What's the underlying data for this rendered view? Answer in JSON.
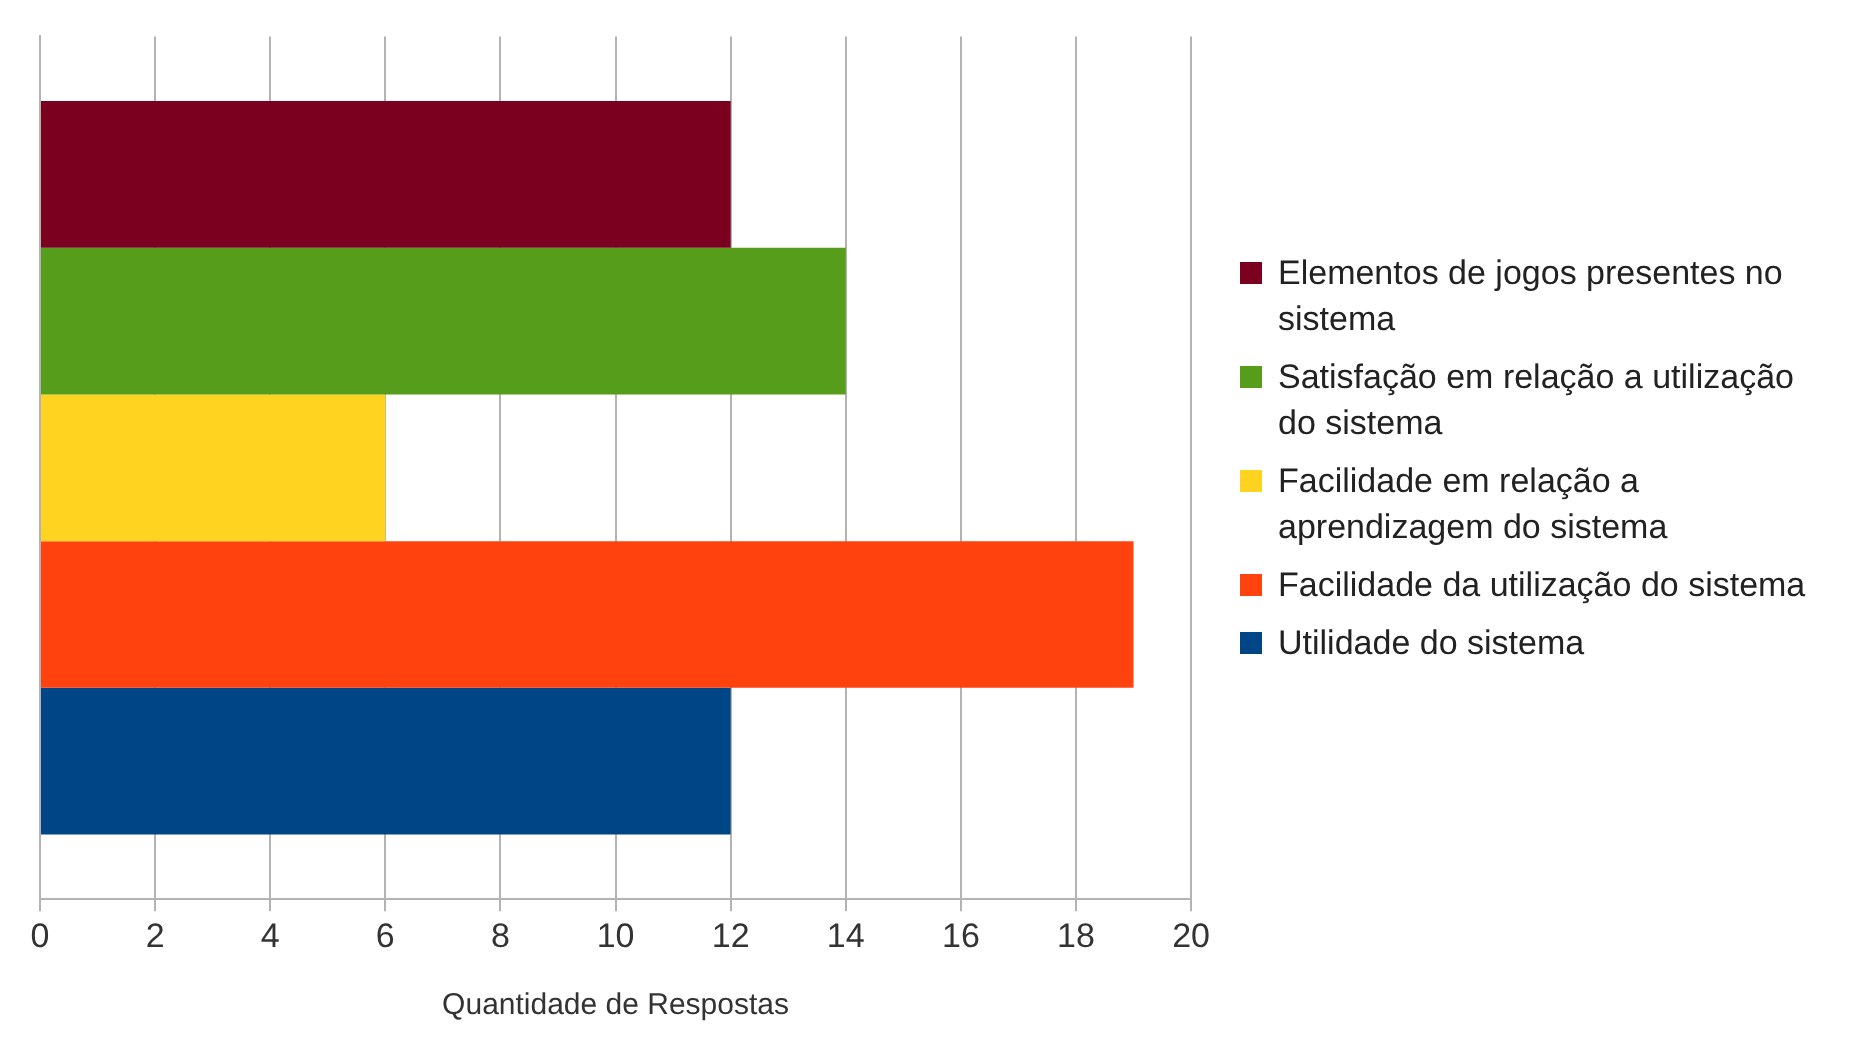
{
  "chart_data": {
    "type": "bar",
    "orientation": "horizontal",
    "categories": [
      null
    ],
    "series": [
      {
        "name": "Elementos de jogos presentes no sistema",
        "color": "#7b0020",
        "values": [
          12
        ]
      },
      {
        "name": "Satisfação em relação a utilização do sistema",
        "color": "#579d1c",
        "values": [
          14
        ]
      },
      {
        "name": "Facilidade em relação a aprendizagem do sistema",
        "color": "#ffd320",
        "values": [
          6
        ]
      },
      {
        "name": "Facilidade da utilização do sistema",
        "color": "#ff420e",
        "values": [
          19
        ]
      },
      {
        "name": "Utilidade do sistema",
        "color": "#004586",
        "values": [
          12
        ]
      }
    ],
    "xlabel": "Quantidade de Respostas",
    "xlim": [
      0,
      20
    ],
    "xticks": [
      0,
      2,
      4,
      6,
      8,
      10,
      12,
      14,
      16,
      18,
      20
    ],
    "grid": "x",
    "legend": "right"
  }
}
